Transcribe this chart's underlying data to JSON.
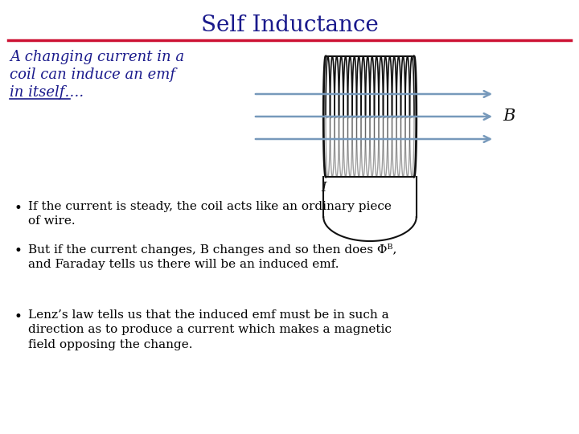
{
  "title": "Self Inductance",
  "title_color": "#1a1a8c",
  "title_fontsize": 20,
  "separator_color": "#cc1133",
  "bg_color": "#ffffff",
  "italic_lines": [
    "A changing current in a",
    "coil can induce an emf",
    "in itself…."
  ],
  "italic_text_color": "#1a1a8c",
  "italic_fontsize": 13,
  "bullet_points": [
    "If the current is steady, the coil acts like an ordinary piece\nof wire.",
    "But if the current changes, B changes and so then does Φᴮ,\nand Faraday tells us there will be an induced emf.",
    "Lenz’s law tells us that the induced emf must be in such a\ndirection as to produce a current which makes a magnetic\nfield opposing the change."
  ],
  "bullet_fontsize": 11,
  "bullet_color": "#000000",
  "coil_color": "#111111",
  "arrow_color": "#7799bb",
  "label_color": "#111111"
}
